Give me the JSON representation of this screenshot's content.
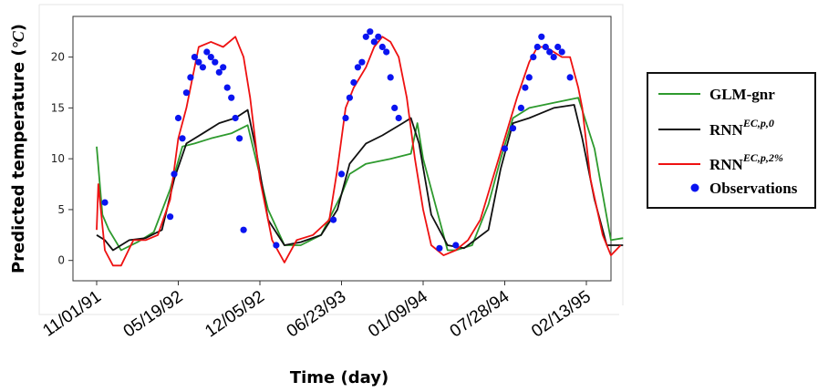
{
  "chart_data": {
    "type": "line",
    "title": "",
    "xlabel": "Time (day)",
    "ylabel": "Predicted temperature (°C)",
    "ylabel_parts": {
      "main": "Predicted temperature (",
      "unit": "°C",
      "close": ")"
    },
    "ylim": [
      -2,
      24
    ],
    "yticks": [
      0,
      5,
      10,
      15,
      20
    ],
    "x_ticks": [
      "11/01/91",
      "05/19/92",
      "12/05/92",
      "06/23/93",
      "01/09/94",
      "07/28/94",
      "02/13/95"
    ],
    "xlim": [
      -0.05,
      6.6
    ],
    "grid": false,
    "legend_position": "right, outside the plot",
    "series": [
      {
        "name": "GLM-gnr",
        "legend_label": "GLM-gnr",
        "color": "#2e9a2e",
        "x": [
          0,
          0.07,
          0.15,
          0.3,
          0.5,
          0.7,
          0.9,
          1.05,
          1.2,
          1.4,
          1.65,
          1.85,
          1.95,
          2.1,
          2.3,
          2.5,
          2.75,
          3.0,
          3.1,
          3.3,
          3.6,
          3.85,
          3.93,
          4.0,
          4.2,
          4.3,
          4.4,
          4.6,
          4.8,
          4.95,
          5.1,
          5.3,
          5.6,
          5.9,
          6.1,
          6.2,
          6.3,
          6.45
        ],
        "y": [
          11.2,
          4.5,
          3.0,
          1.0,
          1.8,
          2.8,
          7.0,
          11.2,
          11.5,
          12.0,
          12.5,
          13.3,
          10.0,
          5.0,
          1.5,
          1.5,
          2.5,
          6.5,
          8.5,
          9.5,
          10.0,
          10.5,
          13.5,
          10.0,
          4.0,
          1.0,
          1.0,
          1.5,
          5.5,
          10.0,
          14.0,
          15.0,
          15.5,
          16.0,
          11.0,
          6.5,
          2.0,
          2.2
        ]
      },
      {
        "name": "RNN EC,p,0",
        "legend_label": "RNN",
        "legend_sup": "EC,p,0",
        "color": "#111111",
        "x": [
          0,
          0.1,
          0.2,
          0.4,
          0.6,
          0.8,
          0.95,
          1.1,
          1.3,
          1.5,
          1.7,
          1.85,
          1.95,
          2.1,
          2.3,
          2.5,
          2.75,
          2.95,
          3.1,
          3.3,
          3.5,
          3.75,
          3.85,
          3.95,
          4.1,
          4.3,
          4.5,
          4.8,
          4.95,
          5.1,
          5.3,
          5.6,
          5.85,
          5.95,
          6.1,
          6.25,
          6.45
        ],
        "y": [
          2.5,
          2.0,
          1.0,
          2.0,
          2.2,
          3.0,
          8.0,
          11.5,
          12.5,
          13.5,
          14.0,
          14.8,
          11.0,
          4.0,
          1.5,
          1.8,
          2.5,
          5.0,
          9.5,
          11.5,
          12.3,
          13.5,
          14.0,
          11.5,
          4.5,
          1.5,
          1.2,
          3.0,
          9.0,
          13.5,
          14.0,
          15.0,
          15.3,
          12.0,
          6.0,
          1.5,
          1.5
        ]
      },
      {
        "name": "RNN EC,p,2%",
        "legend_label": "RNN",
        "legend_sup": "EC,p,2%",
        "color": "#ee1111",
        "x": [
          0,
          0.02,
          0.1,
          0.2,
          0.3,
          0.45,
          0.6,
          0.75,
          0.9,
          1.0,
          1.1,
          1.25,
          1.4,
          1.55,
          1.7,
          1.8,
          1.88,
          2.0,
          2.15,
          2.3,
          2.45,
          2.65,
          2.85,
          2.95,
          3.05,
          3.15,
          3.3,
          3.4,
          3.5,
          3.6,
          3.7,
          3.8,
          3.9,
          4.0,
          4.1,
          4.25,
          4.4,
          4.55,
          4.7,
          4.85,
          5.0,
          5.15,
          5.3,
          5.4,
          5.5,
          5.6,
          5.7,
          5.8,
          5.9,
          5.95,
          6.05,
          6.2,
          6.3,
          6.42
        ],
        "y": [
          3.0,
          7.5,
          1.0,
          -0.5,
          -0.5,
          2.0,
          2.0,
          2.5,
          6.0,
          12.0,
          15.0,
          21.0,
          21.5,
          21.0,
          22.0,
          20.0,
          16.0,
          8.0,
          2.0,
          -0.2,
          2.0,
          2.5,
          4.0,
          9.0,
          15.0,
          17.0,
          19.0,
          21.0,
          22.0,
          21.5,
          20.0,
          16.0,
          10.0,
          5.0,
          1.5,
          0.5,
          1.0,
          2.0,
          4.0,
          8.0,
          12.0,
          16.0,
          19.5,
          21.0,
          21.0,
          20.5,
          20.0,
          20.0,
          17.0,
          15.0,
          8.0,
          2.5,
          0.5,
          1.5
        ]
      }
    ],
    "observations": {
      "name": "Observations",
      "legend_label": "Observations",
      "color": "#0a14f0",
      "x": [
        0.1,
        0.9,
        0.95,
        1.0,
        1.05,
        1.1,
        1.15,
        1.2,
        1.25,
        1.3,
        1.35,
        1.4,
        1.45,
        1.5,
        1.55,
        1.6,
        1.65,
        1.7,
        1.75,
        1.8,
        2.2,
        2.9,
        3.0,
        3.05,
        3.1,
        3.15,
        3.2,
        3.25,
        3.3,
        3.35,
        3.4,
        3.45,
        3.5,
        3.55,
        3.6,
        3.65,
        3.7,
        4.2,
        4.4,
        5.0,
        5.1,
        5.2,
        5.25,
        5.3,
        5.35,
        5.4,
        5.45,
        5.5,
        5.55,
        5.6,
        5.65,
        5.7,
        5.8
      ],
      "y": [
        5.7,
        4.3,
        8.5,
        14.0,
        12.0,
        16.5,
        18.0,
        20.0,
        19.5,
        19.0,
        20.5,
        20.0,
        19.5,
        18.5,
        19.0,
        17.0,
        16.0,
        14.0,
        12.0,
        3.0,
        1.5,
        4.0,
        8.5,
        14.0,
        16.0,
        17.5,
        19.0,
        19.5,
        22.0,
        22.5,
        21.5,
        22.0,
        21.0,
        20.5,
        18.0,
        15.0,
        14.0,
        1.2,
        1.5,
        11.0,
        13.0,
        15.0,
        17.0,
        18.0,
        20.0,
        21.0,
        22.0,
        21.0,
        20.5,
        20.0,
        21.0,
        20.5,
        18.0
      ]
    }
  }
}
